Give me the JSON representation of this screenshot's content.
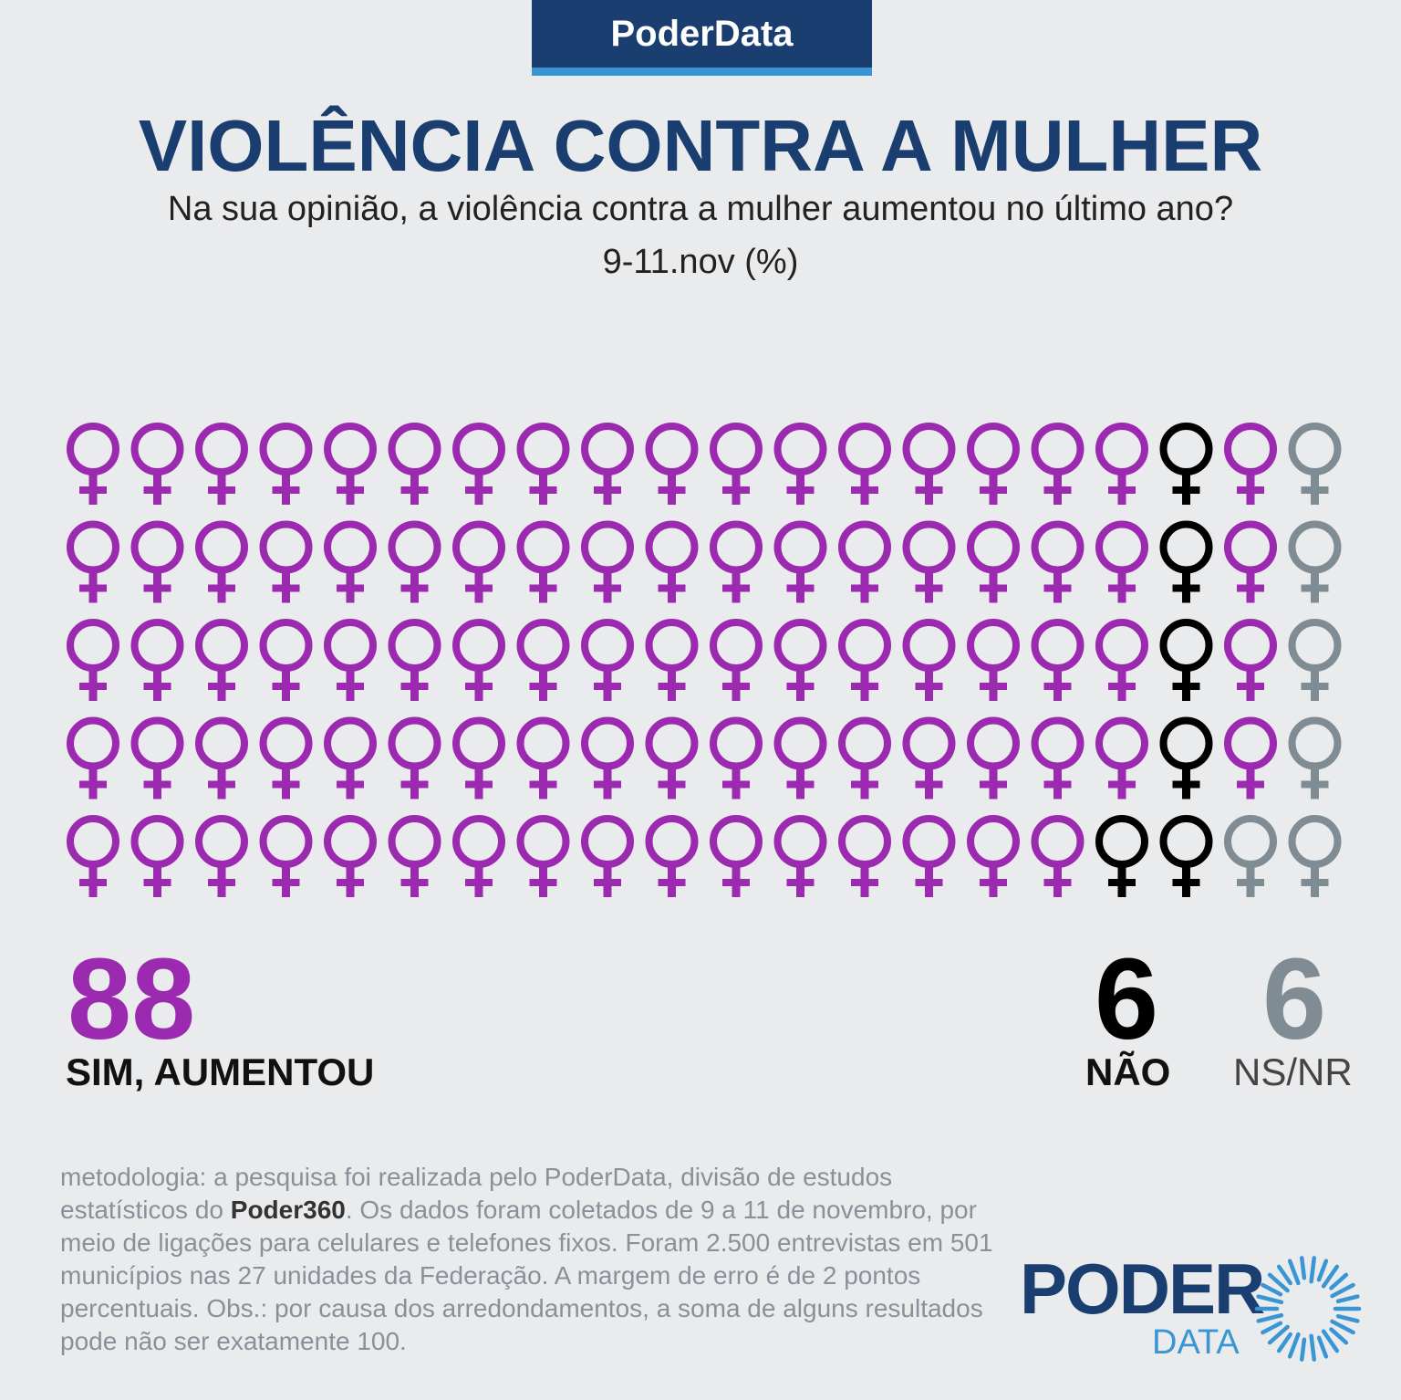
{
  "brand": "PoderData",
  "title": "VIOLÊNCIA CONTRA A MULHER",
  "subtitle": "Na sua opinião, a violência contra a mulher aumentou no último ano?",
  "date": "9-11.nov  (%)",
  "chart_data": {
    "type": "waffle",
    "rows": 5,
    "columns": 20,
    "icon": "female-symbol-icon",
    "series": [
      {
        "name": "SIM, AUMENTOU",
        "value": 88,
        "color": "#9b2ab0"
      },
      {
        "name": "NÃO",
        "value": 6,
        "color": "#000000"
      },
      {
        "name": "NS/NR",
        "value": 6,
        "color": "#7f8c93"
      }
    ]
  },
  "results": {
    "sim": {
      "value": "88",
      "label": "SIM, AUMENTOU"
    },
    "nao": {
      "value": "6",
      "label": "NÃO"
    },
    "nsnr": {
      "value": "6",
      "label": "NS/NR"
    }
  },
  "methodology": {
    "part1": "metodologia: a pesquisa foi realizada pelo PoderData, divisão de estudos estatísticos do ",
    "bold": "Poder360",
    "part2": ". Os dados foram coletados de 9 a 11 de novembro, por meio de ligações para celulares e telefones fixos. Foram 2.500 entrevistas em 501 municípios nas 27 unidades da Federação. A margem de erro é de 2 pontos percentuais. Obs.: por causa dos arredondamentos, a soma de alguns resultados pode não ser exatamente 100."
  },
  "logo": {
    "word1": "PODER",
    "word2": "DATA"
  },
  "colors": {
    "navy": "#1a3e6f",
    "blue": "#3a95d5",
    "purple": "#9b2ab0",
    "black": "#000000",
    "gray": "#7f8c93"
  }
}
